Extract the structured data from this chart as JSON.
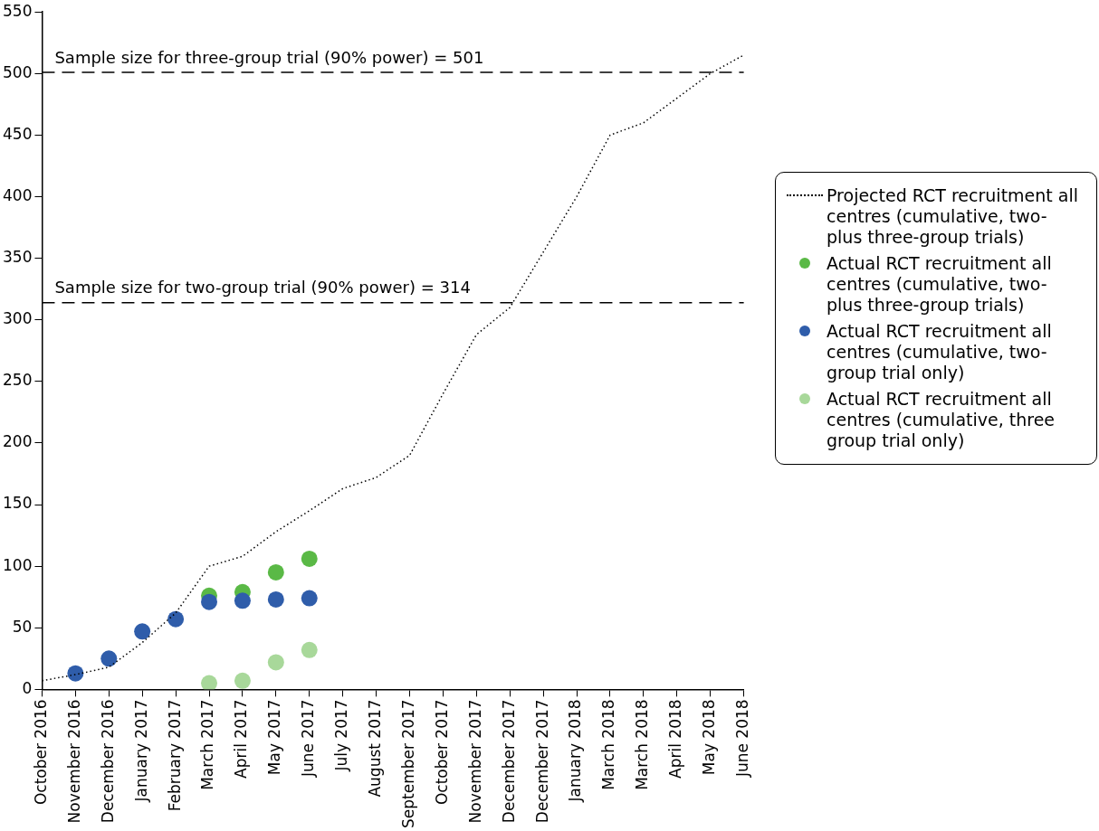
{
  "chart_data": {
    "type": "line",
    "categories": [
      "October 2016",
      "November 2016",
      "December 2016",
      "January 2017",
      "February 2017",
      "March 2017",
      "April 2017",
      "May 2017",
      "June 2017",
      "July 2017",
      "August 2017",
      "September 2017",
      "October 2017",
      "November 2017",
      "December 2017",
      "December 2017",
      "January 2018",
      "March 2018",
      "March 2018",
      "April 2018",
      "May 2018",
      "June 2018"
    ],
    "series": [
      {
        "name": "Projected RCT recruitment all centres (cumulative, two- plus three-group trials)",
        "type": "line",
        "line_style": "dotted",
        "marker": "none",
        "color": "#000000",
        "values": [
          7,
          12,
          18,
          38,
          62,
          100,
          108,
          128,
          145,
          163,
          172,
          190,
          240,
          288,
          310,
          355,
          400,
          450,
          460,
          480,
          500,
          515
        ]
      },
      {
        "name": "Actual RCT recruitment all centres (cumulative, two- plus three-group trials)",
        "type": "scatter",
        "marker": "circle",
        "color": "#5ab946",
        "values": [
          null,
          null,
          null,
          null,
          null,
          76,
          79,
          95,
          106,
          null,
          null,
          null,
          null,
          null,
          null,
          null,
          null,
          null,
          null,
          null,
          null,
          null
        ]
      },
      {
        "name": "Actual RCT recruitment all centres (cumulative, two-group trial only)",
        "type": "scatter",
        "marker": "circle",
        "color": "#2f5daa",
        "values": [
          null,
          13,
          25,
          47,
          57,
          71,
          72,
          73,
          74,
          null,
          null,
          null,
          null,
          null,
          null,
          null,
          null,
          null,
          null,
          null,
          null,
          null
        ]
      },
      {
        "name": "Actual RCT recruitment all centres (cumulative, three group trial only)",
        "type": "scatter",
        "marker": "circle",
        "color": "#a8d89a",
        "values": [
          null,
          null,
          null,
          null,
          null,
          5,
          7,
          22,
          32,
          null,
          null,
          null,
          null,
          null,
          null,
          null,
          null,
          null,
          null,
          null,
          null,
          null
        ]
      }
    ],
    "ylim": [
      0,
      550
    ],
    "yticks": [
      0,
      50,
      100,
      150,
      200,
      250,
      300,
      350,
      400,
      450,
      500,
      550
    ],
    "ref_lines": [
      {
        "axis": "y",
        "value": 501,
        "label": "Sample size for three-group trial (90% power) = 501",
        "line_style": "dashed",
        "color": "#000000"
      },
      {
        "axis": "y",
        "value": 314,
        "label": "Sample size for two-group trial (90% power) = 314",
        "line_style": "dashed",
        "color": "#000000"
      }
    ],
    "grid": false,
    "legend": "right"
  }
}
